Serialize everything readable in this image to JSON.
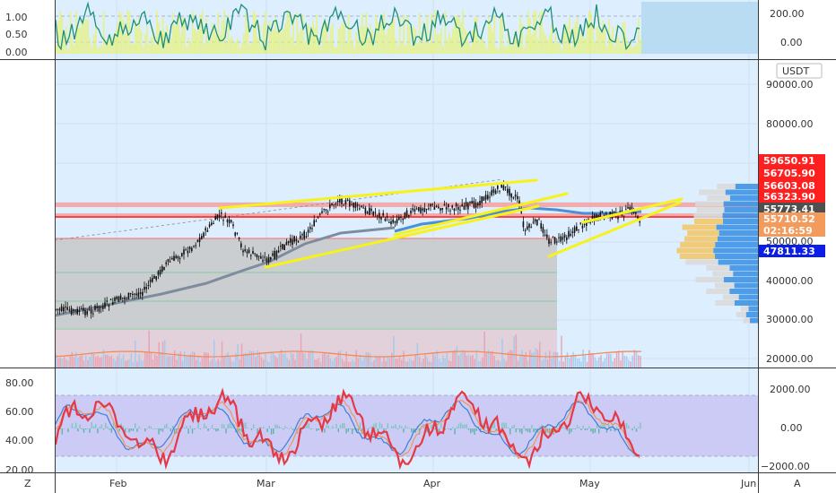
{
  "colors": {
    "background": "#ddeeff",
    "grid": "#cfe0f3",
    "separator": "#3a3a3a",
    "candle": "#111111",
    "trendline": "#f7f21a",
    "ma_blue": "#4a90d9",
    "ma_gray": "#7f8c9d",
    "rsi_red": "#e53946",
    "green_line": "#1e8f7a",
    "osc_band": "#c9c6f5",
    "tag_red": "#ff1f1f",
    "tag_dark": "#4f4f4f",
    "tag_orange": "#f39a5d",
    "tag_blue": "#0b1ee8"
  },
  "top_panel": {
    "left_ticks": [
      "1.00",
      "0.50",
      "0.00"
    ],
    "right_ticks": [
      "200.00",
      "0.00"
    ]
  },
  "main_panel": {
    "currency": "USDT",
    "right_ticks": [
      "90000.00",
      "80000.00",
      "50000.00",
      "40000.00",
      "30000.00",
      "20000.00"
    ],
    "price_tags": [
      {
        "label": "59650.91",
        "color": "#ff1f1f"
      },
      {
        "label": "56705.90",
        "color": "#ff1f1f"
      },
      {
        "label": "56603.08",
        "color": "#ff1f1f"
      },
      {
        "label": "56323.90",
        "color": "#ff1f1f"
      },
      {
        "label": "55773.41",
        "color": "#4f4f4f"
      },
      {
        "label": "55710.52",
        "color": "#f39a5d"
      },
      {
        "label": "02:16:59",
        "color": "#f39a5d"
      },
      {
        "label": "47811.33",
        "color": "#0b1ee8"
      }
    ]
  },
  "bottom_panel": {
    "left_ticks": [
      "80.00",
      "60.00",
      "40.00",
      "20.00"
    ],
    "right_ticks": [
      "2000.00",
      "0.00",
      "−2000.00"
    ]
  },
  "time_axis": {
    "labels": [
      "Feb",
      "Mar",
      "Apr",
      "May",
      "Jun"
    ],
    "left_button": "Z",
    "right_button": "A"
  }
}
